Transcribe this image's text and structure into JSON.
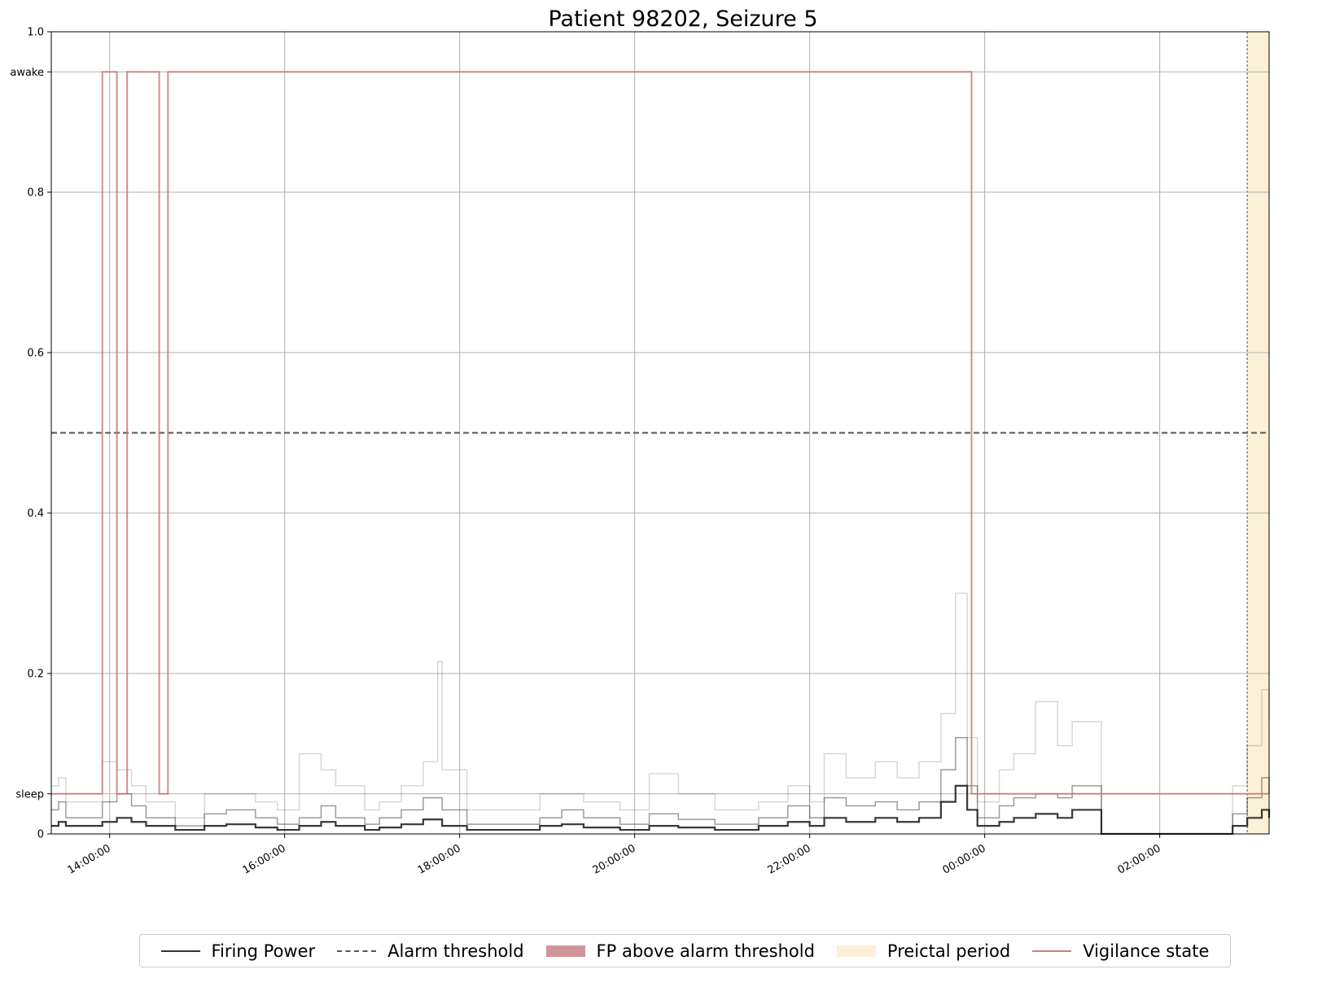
{
  "chart_data": {
    "type": "line",
    "title": "Patient 98202, Seizure 5",
    "xlabel": "",
    "ylabel": "",
    "x_axis": {
      "type": "time",
      "range": [
        "13:20:00",
        "03:15:00"
      ],
      "tick_labels": [
        "14:00:00",
        "16:00:00",
        "18:00:00",
        "20:00:00",
        "22:00:00",
        "00:00:00",
        "02:00:00"
      ]
    },
    "y_axis": {
      "range": [
        0,
        1.0
      ],
      "ticks": [
        {
          "value": 0,
          "label": "0"
        },
        {
          "value": 0.05,
          "label": "sleep"
        },
        {
          "value": 0.2,
          "label": "0.2"
        },
        {
          "value": 0.4,
          "label": "0.4"
        },
        {
          "value": 0.6,
          "label": "0.6"
        },
        {
          "value": 0.8,
          "label": "0.8"
        },
        {
          "value": 0.95,
          "label": "awake"
        },
        {
          "value": 1.0,
          "label": "1.0"
        }
      ]
    },
    "grid": true,
    "legend_position": "bottom",
    "alarm_threshold": 0.5,
    "preictal_period": {
      "start": "03:00:00",
      "end": "03:15:00"
    },
    "vigilance_state": [
      {
        "time": "13:20:00",
        "value": 0.05
      },
      {
        "time": "13:55:00",
        "value": 0.95
      },
      {
        "time": "14:05:00",
        "value": 0.05
      },
      {
        "time": "14:12:00",
        "value": 0.95
      },
      {
        "time": "14:34:00",
        "value": 0.05
      },
      {
        "time": "14:40:00",
        "value": 0.95
      },
      {
        "time": "23:51:00",
        "value": 0.05
      },
      {
        "time": "03:15:00",
        "value": 0.05
      }
    ],
    "series": [
      {
        "name": "Firing Power",
        "style": "mean",
        "points": [
          [
            "13:20:00",
            0.01
          ],
          [
            "13:25:00",
            0.015
          ],
          [
            "13:30:00",
            0.01
          ],
          [
            "13:45:00",
            0.01
          ],
          [
            "13:55:00",
            0.015
          ],
          [
            "14:05:00",
            0.02
          ],
          [
            "14:15:00",
            0.015
          ],
          [
            "14:25:00",
            0.01
          ],
          [
            "14:45:00",
            0.005
          ],
          [
            "15:05:00",
            0.01
          ],
          [
            "15:20:00",
            0.012
          ],
          [
            "15:40:00",
            0.008
          ],
          [
            "15:55:00",
            0.005
          ],
          [
            "16:10:00",
            0.01
          ],
          [
            "16:25:00",
            0.015
          ],
          [
            "16:35:00",
            0.01
          ],
          [
            "16:55:00",
            0.005
          ],
          [
            "17:05:00",
            0.008
          ],
          [
            "17:20:00",
            0.012
          ],
          [
            "17:35:00",
            0.018
          ],
          [
            "17:48:00",
            0.01
          ],
          [
            "18:05:00",
            0.005
          ],
          [
            "18:35:00",
            0.005
          ],
          [
            "18:55:00",
            0.01
          ],
          [
            "19:10:00",
            0.012
          ],
          [
            "19:25:00",
            0.008
          ],
          [
            "19:50:00",
            0.005
          ],
          [
            "20:10:00",
            0.01
          ],
          [
            "20:30:00",
            0.008
          ],
          [
            "20:55:00",
            0.005
          ],
          [
            "21:25:00",
            0.01
          ],
          [
            "21:45:00",
            0.015
          ],
          [
            "22:00:00",
            0.01
          ],
          [
            "22:10:00",
            0.02
          ],
          [
            "22:25:00",
            0.015
          ],
          [
            "22:45:00",
            0.02
          ],
          [
            "23:00:00",
            0.015
          ],
          [
            "23:15:00",
            0.02
          ],
          [
            "23:30:00",
            0.04
          ],
          [
            "23:40:00",
            0.06
          ],
          [
            "23:48:00",
            0.03
          ],
          [
            "23:55:00",
            0.01
          ],
          [
            "00:10:00",
            0.015
          ],
          [
            "00:20:00",
            0.02
          ],
          [
            "00:35:00",
            0.025
          ],
          [
            "00:50:00",
            0.02
          ],
          [
            "01:00:00",
            0.03
          ],
          [
            "01:20:00",
            0.0
          ],
          [
            "01:40:00",
            0.0
          ],
          [
            "02:00:00",
            0.0
          ],
          [
            "02:40:00",
            0.0
          ],
          [
            "02:50:00",
            0.01
          ],
          [
            "03:00:00",
            0.02
          ],
          [
            "03:10:00",
            0.03
          ],
          [
            "03:15:00",
            0.02
          ]
        ]
      },
      {
        "name": "",
        "style": "band-dark",
        "points": [
          [
            "13:20:00",
            0.03
          ],
          [
            "13:25:00",
            0.04
          ],
          [
            "13:30:00",
            0.02
          ],
          [
            "13:45:00",
            0.02
          ],
          [
            "13:55:00",
            0.04
          ],
          [
            "14:05:00",
            0.05
          ],
          [
            "14:15:00",
            0.035
          ],
          [
            "14:25:00",
            0.02
          ],
          [
            "14:45:00",
            0.01
          ],
          [
            "15:05:00",
            0.025
          ],
          [
            "15:20:00",
            0.03
          ],
          [
            "15:40:00",
            0.02
          ],
          [
            "15:55:00",
            0.012
          ],
          [
            "16:10:00",
            0.02
          ],
          [
            "16:25:00",
            0.035
          ],
          [
            "16:35:00",
            0.02
          ],
          [
            "16:55:00",
            0.012
          ],
          [
            "17:05:00",
            0.02
          ],
          [
            "17:20:00",
            0.03
          ],
          [
            "17:35:00",
            0.045
          ],
          [
            "17:48:00",
            0.03
          ],
          [
            "18:05:00",
            0.012
          ],
          [
            "18:35:00",
            0.012
          ],
          [
            "18:55:00",
            0.02
          ],
          [
            "19:10:00",
            0.03
          ],
          [
            "19:25:00",
            0.02
          ],
          [
            "19:50:00",
            0.012
          ],
          [
            "20:10:00",
            0.025
          ],
          [
            "20:30:00",
            0.018
          ],
          [
            "20:55:00",
            0.012
          ],
          [
            "21:25:00",
            0.02
          ],
          [
            "21:45:00",
            0.035
          ],
          [
            "22:00:00",
            0.02
          ],
          [
            "22:10:00",
            0.045
          ],
          [
            "22:25:00",
            0.035
          ],
          [
            "22:45:00",
            0.04
          ],
          [
            "23:00:00",
            0.03
          ],
          [
            "23:15:00",
            0.04
          ],
          [
            "23:30:00",
            0.08
          ],
          [
            "23:40:00",
            0.12
          ],
          [
            "23:48:00",
            0.06
          ],
          [
            "23:55:00",
            0.02
          ],
          [
            "00:10:00",
            0.035
          ],
          [
            "00:20:00",
            0.045
          ],
          [
            "00:35:00",
            0.05
          ],
          [
            "00:50:00",
            0.045
          ],
          [
            "01:00:00",
            0.06
          ],
          [
            "01:20:00",
            0.0
          ],
          [
            "01:40:00",
            0.0
          ],
          [
            "02:00:00",
            0.0
          ],
          [
            "02:40:00",
            0.0
          ],
          [
            "02:50:00",
            0.025
          ],
          [
            "03:00:00",
            0.045
          ],
          [
            "03:10:00",
            0.07
          ],
          [
            "03:15:00",
            0.05
          ]
        ]
      },
      {
        "name": "",
        "style": "band-light",
        "points": [
          [
            "13:20:00",
            0.06
          ],
          [
            "13:25:00",
            0.07
          ],
          [
            "13:30:00",
            0.04
          ],
          [
            "13:45:00",
            0.04
          ],
          [
            "13:55:00",
            0.09
          ],
          [
            "14:05:00",
            0.08
          ],
          [
            "14:15:00",
            0.06
          ],
          [
            "14:25:00",
            0.04
          ],
          [
            "14:45:00",
            0.02
          ],
          [
            "15:05:00",
            0.05
          ],
          [
            "15:20:00",
            0.05
          ],
          [
            "15:40:00",
            0.04
          ],
          [
            "15:55:00",
            0.03
          ],
          [
            "16:10:00",
            0.1
          ],
          [
            "16:25:00",
            0.08
          ],
          [
            "16:35:00",
            0.06
          ],
          [
            "16:55:00",
            0.03
          ],
          [
            "17:05:00",
            0.04
          ],
          [
            "17:20:00",
            0.06
          ],
          [
            "17:35:00",
            0.09
          ],
          [
            "17:45:00",
            0.215
          ],
          [
            "17:48:00",
            0.08
          ],
          [
            "18:05:00",
            0.03
          ],
          [
            "18:35:00",
            0.03
          ],
          [
            "18:55:00",
            0.05
          ],
          [
            "19:10:00",
            0.05
          ],
          [
            "19:25:00",
            0.04
          ],
          [
            "19:50:00",
            0.03
          ],
          [
            "20:10:00",
            0.075
          ],
          [
            "20:30:00",
            0.05
          ],
          [
            "20:55:00",
            0.03
          ],
          [
            "21:25:00",
            0.04
          ],
          [
            "21:45:00",
            0.06
          ],
          [
            "22:00:00",
            0.04
          ],
          [
            "22:10:00",
            0.1
          ],
          [
            "22:25:00",
            0.07
          ],
          [
            "22:45:00",
            0.09
          ],
          [
            "23:00:00",
            0.07
          ],
          [
            "23:15:00",
            0.09
          ],
          [
            "23:30:00",
            0.15
          ],
          [
            "23:40:00",
            0.3
          ],
          [
            "23:48:00",
            0.12
          ],
          [
            "23:55:00",
            0.04
          ],
          [
            "00:10:00",
            0.08
          ],
          [
            "00:20:00",
            0.1
          ],
          [
            "00:35:00",
            0.165
          ],
          [
            "00:50:00",
            0.11
          ],
          [
            "01:00:00",
            0.14
          ],
          [
            "01:20:00",
            0.0
          ],
          [
            "01:40:00",
            0.0
          ],
          [
            "02:00:00",
            0.0
          ],
          [
            "02:40:00",
            0.0
          ],
          [
            "02:50:00",
            0.06
          ],
          [
            "03:00:00",
            0.11
          ],
          [
            "03:10:00",
            0.18
          ],
          [
            "03:15:00",
            0.14
          ]
        ]
      }
    ],
    "legend": [
      {
        "label": "Firing Power",
        "kind": "line",
        "color": "#333333"
      },
      {
        "label": "Alarm threshold",
        "kind": "dashed",
        "color": "#555555"
      },
      {
        "label": "FP above alarm threshold",
        "kind": "patch",
        "color": "#d09596"
      },
      {
        "label": "Preictal period",
        "kind": "patch",
        "color": "#fdf0d8"
      },
      {
        "label": "Vigilance state",
        "kind": "line",
        "color": "#d08080"
      }
    ],
    "colors": {
      "firing_power": "#222222",
      "threshold": "#555555",
      "vigilance": "#c97a7a",
      "preictal": "#fdf0d8",
      "grid": "#b0b0b0"
    }
  }
}
